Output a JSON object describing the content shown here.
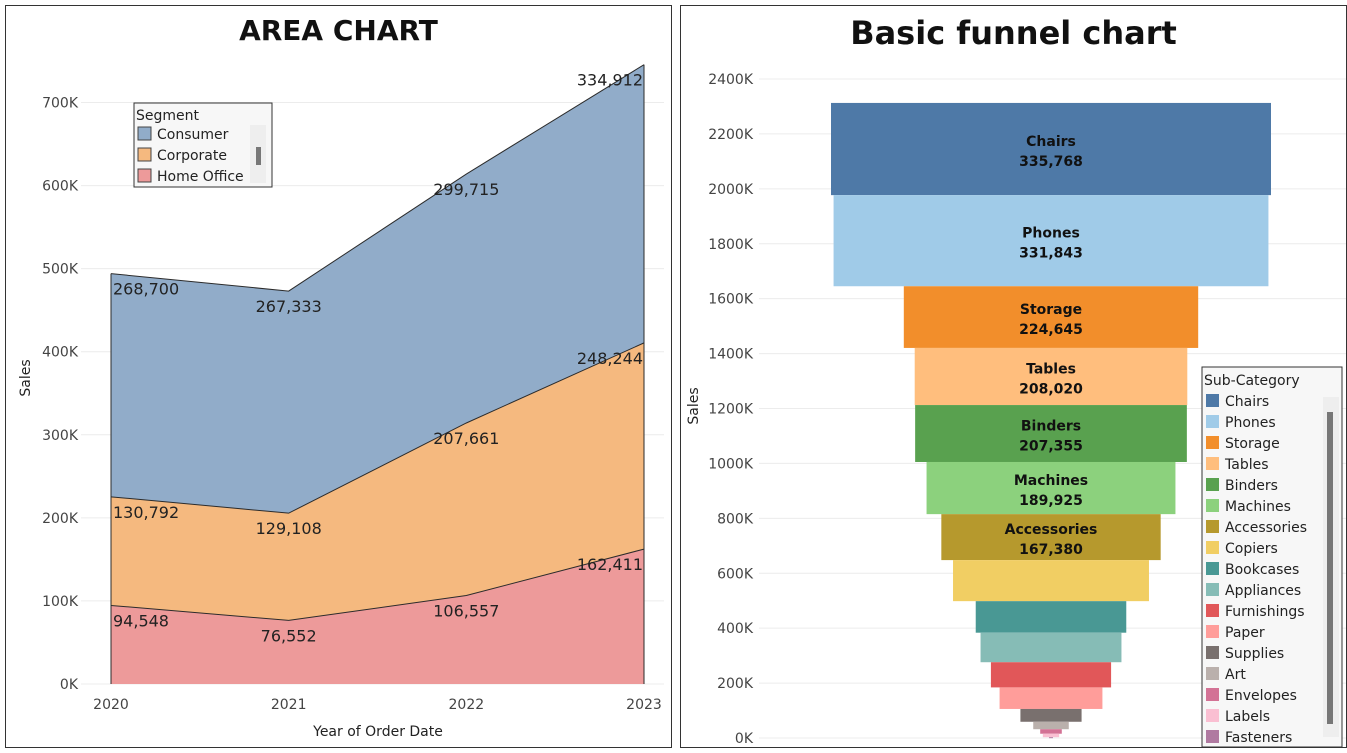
{
  "chart_data": [
    {
      "type": "area",
      "title": "AREA CHART",
      "xlabel": "Year of Order Date",
      "ylabel": "Sales",
      "ylim": [
        0,
        750000
      ],
      "y_ticks": [
        "0K",
        "100K",
        "200K",
        "300K",
        "400K",
        "500K",
        "600K",
        "700K"
      ],
      "categories": [
        "2020",
        "2021",
        "2022",
        "2023"
      ],
      "stacked": true,
      "legend": {
        "title": "Segment",
        "position": "top-left"
      },
      "series": [
        {
          "name": "Home Office",
          "color": "#ed9a9a",
          "values": [
            94548,
            76552,
            106557,
            162411
          ],
          "labels": [
            "94,548",
            "76,552",
            "106,557",
            "162,411"
          ]
        },
        {
          "name": "Corporate",
          "color": "#f5b97f",
          "values": [
            130792,
            129108,
            207661,
            248244
          ],
          "labels": [
            "130,792",
            "129,108",
            "207,661",
            "248,244"
          ]
        },
        {
          "name": "Consumer",
          "color": "#91acc9",
          "values": [
            268700,
            267333,
            299715,
            334912
          ],
          "labels": [
            "268,700",
            "267,333",
            "299,715",
            "334,912"
          ]
        }
      ]
    },
    {
      "type": "funnel",
      "title": "Basic funnel chart",
      "ylabel": "Sales",
      "ylim": [
        0,
        2400000
      ],
      "y_ticks": [
        "0K",
        "200K",
        "400K",
        "600K",
        "800K",
        "1000K",
        "1200K",
        "1400K",
        "1600K",
        "1800K",
        "2000K",
        "2200K",
        "2400K"
      ],
      "legend": {
        "title": "Sub-Category",
        "position": "right"
      },
      "series": [
        {
          "name": "Chairs",
          "color": "#4e79a7",
          "value": 335768,
          "label": "335,768"
        },
        {
          "name": "Phones",
          "color": "#a0cbe8",
          "value": 331843,
          "label": "331,843"
        },
        {
          "name": "Storage",
          "color": "#f28e2b",
          "value": 224645,
          "label": "224,645"
        },
        {
          "name": "Tables",
          "color": "#ffbe7d",
          "value": 208020,
          "label": "208,020"
        },
        {
          "name": "Binders",
          "color": "#59a14f",
          "value": 207355,
          "label": "207,355"
        },
        {
          "name": "Machines",
          "color": "#8cd17d",
          "value": 189925,
          "label": "189,925"
        },
        {
          "name": "Accessories",
          "color": "#b6992d",
          "value": 167380,
          "label": "167,380"
        },
        {
          "name": "Copiers",
          "color": "#f1ce63",
          "value": 149528,
          "label": ""
        },
        {
          "name": "Bookcases",
          "color": "#499894",
          "value": 114880,
          "label": ""
        },
        {
          "name": "Appliances",
          "color": "#86bcb6",
          "value": 107532,
          "label": ""
        },
        {
          "name": "Furnishings",
          "color": "#e15759",
          "value": 91705,
          "label": ""
        },
        {
          "name": "Paper",
          "color": "#ff9d9a",
          "value": 78479,
          "label": ""
        },
        {
          "name": "Supplies",
          "color": "#79706e",
          "value": 46674,
          "label": ""
        },
        {
          "name": "Art",
          "color": "#bab0ac",
          "value": 27119,
          "label": ""
        },
        {
          "name": "Envelopes",
          "color": "#d37295",
          "value": 16476,
          "label": ""
        },
        {
          "name": "Labels",
          "color": "#fabfd2",
          "value": 12486,
          "label": ""
        },
        {
          "name": "Fasteners",
          "color": "#b07aa1",
          "value": 3024,
          "label": ""
        }
      ]
    }
  ]
}
